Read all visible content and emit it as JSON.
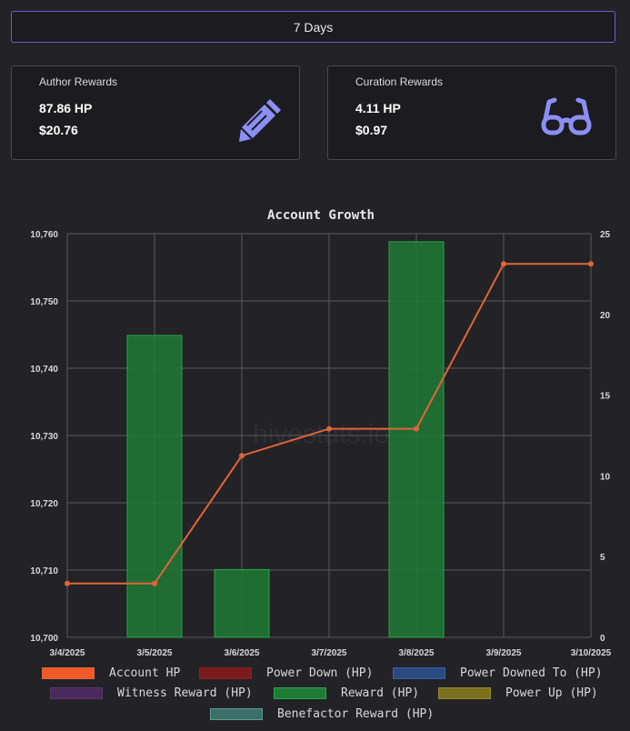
{
  "period_button": {
    "label": "7 Days"
  },
  "author_card": {
    "title": "Author Rewards",
    "hp": "87.86 HP",
    "usd": "$20.76",
    "icon": "pencil-icon"
  },
  "curation_card": {
    "title": "Curation Rewards",
    "hp": "4.11 HP",
    "usd": "$0.97",
    "icon": "glasses-icon"
  },
  "colors": {
    "accent": "#8b8ff5",
    "line": "#e0653a",
    "bar": "#1e7a36",
    "border": "#6b5fd8"
  },
  "chart_data": {
    "type": "bar+line",
    "title": "Account Growth",
    "watermark": "hivestats.io",
    "categories": [
      "3/4/2025",
      "3/5/2025",
      "3/6/2025",
      "3/7/2025",
      "3/8/2025",
      "3/9/2025",
      "3/10/2025"
    ],
    "left_axis": {
      "ylim": [
        10700,
        10760
      ],
      "ticks": [
        "10,700",
        "10,710",
        "10,720",
        "10,730",
        "10,740",
        "10,750",
        "10,760"
      ]
    },
    "right_axis": {
      "ylim": [
        0,
        25
      ],
      "ticks": [
        "0",
        "5",
        "10",
        "15",
        "20",
        "25"
      ]
    },
    "series": [
      {
        "name": "Account HP",
        "type": "line",
        "axis": "left",
        "values": [
          10708,
          10708,
          10727,
          10731,
          10731,
          10755.5,
          10755.5
        ]
      },
      {
        "name": "Reward (HP)",
        "type": "bar",
        "axis": "right",
        "values": [
          0,
          18.7,
          4.2,
          0,
          24.5,
          0,
          0
        ]
      }
    ],
    "legend": [
      {
        "name": "Account HP",
        "fill": "#f05a28",
        "stroke": "#e0653a"
      },
      {
        "name": "Power Down (HP)",
        "fill": "#7a1a1a",
        "stroke": "#8a2222"
      },
      {
        "name": "Power Downed To (HP)",
        "fill": "#2a4a82",
        "stroke": "#3b5fa0"
      },
      {
        "name": "Witness Reward (HP)",
        "fill": "#4a2a5a",
        "stroke": "#5a3570"
      },
      {
        "name": "Reward (HP)",
        "fill": "#1e7a36",
        "stroke": "#28a745"
      },
      {
        "name": "Power Up (HP)",
        "fill": "#7a7020",
        "stroke": "#958a2a"
      },
      {
        "name": "Benefactor Reward (HP)",
        "fill": "#3d6e68",
        "stroke": "#5a9c95"
      }
    ],
    "grid": true,
    "legend_position": "bottom"
  }
}
